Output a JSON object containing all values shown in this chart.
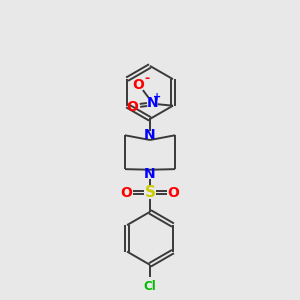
{
  "bg_color": "#e8e8e8",
  "bond_color": "#3a3a3a",
  "bond_width": 1.4,
  "N_color": "#0000ff",
  "O_color": "#ff0000",
  "S_color": "#cccc00",
  "Cl_color": "#00bb00",
  "figsize": [
    3.0,
    3.0
  ],
  "dpi": 100,
  "xlim": [
    0,
    10
  ],
  "ylim": [
    0,
    10
  ]
}
